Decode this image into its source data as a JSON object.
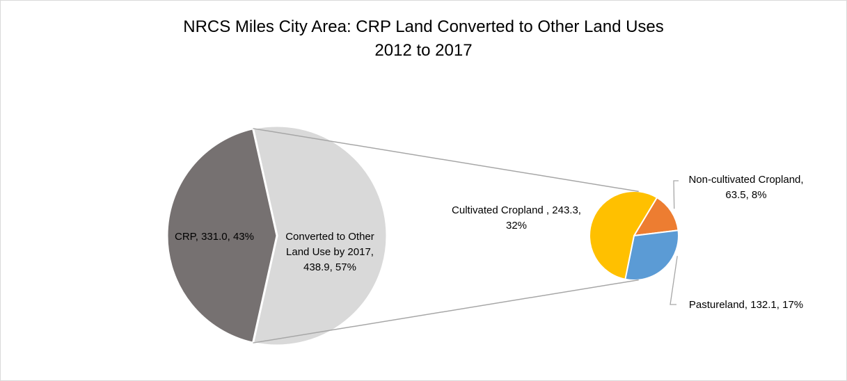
{
  "chart_data": {
    "type": "pie",
    "subtype": "pie-of-pie",
    "title_line1": "NRCS Miles City Area: CRP Land Converted to Other Land Uses",
    "title_line2": "2012 to 2017",
    "main_pie": {
      "slices": [
        {
          "key": "crp",
          "name": "CRP",
          "value": 331.0,
          "percent": "43%",
          "color": "#767171",
          "label_lines": [
            "CRP, 331.0, 43%"
          ]
        },
        {
          "key": "converted",
          "name": "Converted to Other Land Use by 2017",
          "value": 438.9,
          "percent": "57%",
          "color": "#d9d9d9",
          "label_lines": [
            "Converted to Other",
            "Land Use by 2017,",
            "438.9, 57%"
          ]
        }
      ]
    },
    "secondary_pie": {
      "slices": [
        {
          "key": "noncult",
          "name": "Non-cultivated Cropland",
          "value": 63.5,
          "percent": "8%",
          "color": "#ed7d31",
          "label_lines": [
            "Non-cultivated Cropland,",
            "63.5, 8%"
          ]
        },
        {
          "key": "pasture",
          "name": "Pastureland",
          "value": 132.1,
          "percent": "17%",
          "color": "#5b9bd5",
          "label_lines": [
            "Pastureland, 132.1, 17%"
          ]
        },
        {
          "key": "cultivated",
          "name": "Cultivated Cropland",
          "value": 243.3,
          "percent": "32%",
          "color": "#ffc000",
          "label_lines": [
            "Cultivated Cropland , 243.3,",
            "32%"
          ]
        }
      ]
    }
  }
}
